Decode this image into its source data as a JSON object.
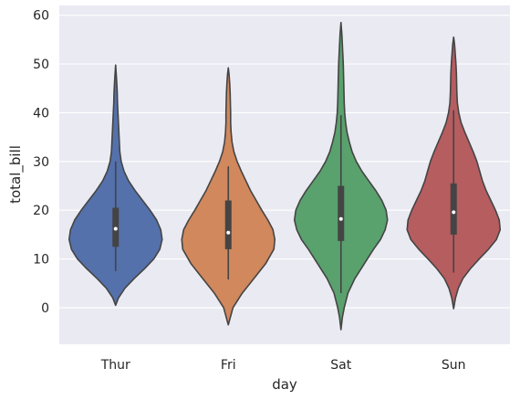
{
  "chart_data": {
    "type": "violin",
    "xlabel": "day",
    "ylabel": "total_bill",
    "ylim": [
      -7.5,
      62
    ],
    "yticks": [
      0,
      10,
      20,
      30,
      40,
      50,
      60
    ],
    "grid": true,
    "categories": [
      "Thur",
      "Fri",
      "Sat",
      "Sun"
    ],
    "colors": [
      "#5471ab",
      "#d1885c",
      "#59a16d",
      "#b65d60"
    ],
    "violins": [
      {
        "name": "Thur",
        "range": [
          0.5,
          49.8
        ],
        "profile": [
          [
            0.5,
            0.0
          ],
          [
            2,
            0.06
          ],
          [
            4,
            0.2
          ],
          [
            6,
            0.4
          ],
          [
            8,
            0.62
          ],
          [
            10,
            0.82
          ],
          [
            12,
            0.95
          ],
          [
            14,
            1.0
          ],
          [
            16,
            0.97
          ],
          [
            18,
            0.88
          ],
          [
            20,
            0.74
          ],
          [
            22,
            0.58
          ],
          [
            24,
            0.42
          ],
          [
            26,
            0.28
          ],
          [
            28,
            0.18
          ],
          [
            30,
            0.12
          ],
          [
            32,
            0.09
          ],
          [
            34,
            0.08
          ],
          [
            36,
            0.07
          ],
          [
            38,
            0.06
          ],
          [
            40,
            0.05
          ],
          [
            42,
            0.04
          ],
          [
            44,
            0.035
          ],
          [
            46,
            0.025
          ],
          [
            48,
            0.012
          ],
          [
            49.8,
            0.0
          ]
        ],
        "whisker": [
          7.5,
          30
        ],
        "quartiles": [
          12.5,
          20.5
        ],
        "median": 16.2
      },
      {
        "name": "Fri",
        "range": [
          -3.5,
          49.2
        ],
        "profile": [
          [
            -3.5,
            0.0
          ],
          [
            0,
            0.1
          ],
          [
            3,
            0.3
          ],
          [
            6,
            0.55
          ],
          [
            9,
            0.8
          ],
          [
            12,
            0.98
          ],
          [
            14,
            1.0
          ],
          [
            16,
            0.96
          ],
          [
            18,
            0.85
          ],
          [
            20,
            0.72
          ],
          [
            22,
            0.6
          ],
          [
            24,
            0.48
          ],
          [
            26,
            0.38
          ],
          [
            28,
            0.28
          ],
          [
            30,
            0.19
          ],
          [
            32,
            0.12
          ],
          [
            34,
            0.08
          ],
          [
            36,
            0.06
          ],
          [
            38,
            0.05
          ],
          [
            40,
            0.05
          ],
          [
            42,
            0.045
          ],
          [
            44,
            0.04
          ],
          [
            46,
            0.03
          ],
          [
            48,
            0.015
          ],
          [
            49.2,
            0.0
          ]
        ],
        "whisker": [
          5.8,
          29
        ],
        "quartiles": [
          12,
          22
        ],
        "median": 15.4
      },
      {
        "name": "Sat",
        "range": [
          -4.5,
          58.5
        ],
        "profile": [
          [
            -4.5,
            0.0
          ],
          [
            -2,
            0.03
          ],
          [
            0,
            0.07
          ],
          [
            3,
            0.15
          ],
          [
            6,
            0.3
          ],
          [
            9,
            0.5
          ],
          [
            12,
            0.7
          ],
          [
            14,
            0.85
          ],
          [
            16,
            0.95
          ],
          [
            18,
            1.0
          ],
          [
            20,
            0.97
          ],
          [
            22,
            0.88
          ],
          [
            24,
            0.75
          ],
          [
            26,
            0.6
          ],
          [
            28,
            0.45
          ],
          [
            30,
            0.33
          ],
          [
            32,
            0.24
          ],
          [
            34,
            0.18
          ],
          [
            36,
            0.13
          ],
          [
            38,
            0.1
          ],
          [
            40,
            0.08
          ],
          [
            42,
            0.07
          ],
          [
            44,
            0.065
          ],
          [
            46,
            0.06
          ],
          [
            48,
            0.055
          ],
          [
            50,
            0.05
          ],
          [
            52,
            0.04
          ],
          [
            54,
            0.03
          ],
          [
            56,
            0.02
          ],
          [
            58.5,
            0.0
          ]
        ],
        "whisker": [
          3,
          39.5
        ],
        "quartiles": [
          13.7,
          25
        ],
        "median": 18.2
      },
      {
        "name": "Sun",
        "range": [
          -0.2,
          55.5
        ],
        "profile": [
          [
            -0.2,
            0.0
          ],
          [
            2,
            0.04
          ],
          [
            4,
            0.1
          ],
          [
            6,
            0.2
          ],
          [
            8,
            0.36
          ],
          [
            10,
            0.55
          ],
          [
            12,
            0.75
          ],
          [
            14,
            0.92
          ],
          [
            16,
            1.0
          ],
          [
            18,
            0.98
          ],
          [
            20,
            0.9
          ],
          [
            22,
            0.8
          ],
          [
            24,
            0.7
          ],
          [
            26,
            0.62
          ],
          [
            28,
            0.56
          ],
          [
            30,
            0.5
          ],
          [
            32,
            0.42
          ],
          [
            34,
            0.33
          ],
          [
            36,
            0.24
          ],
          [
            38,
            0.16
          ],
          [
            40,
            0.11
          ],
          [
            42,
            0.08
          ],
          [
            44,
            0.07
          ],
          [
            46,
            0.065
          ],
          [
            48,
            0.06
          ],
          [
            50,
            0.05
          ],
          [
            52,
            0.035
          ],
          [
            54,
            0.02
          ],
          [
            55.5,
            0.0
          ]
        ],
        "whisker": [
          7.2,
          40.5
        ],
        "quartiles": [
          15,
          25.5
        ],
        "median": 19.6
      }
    ]
  }
}
